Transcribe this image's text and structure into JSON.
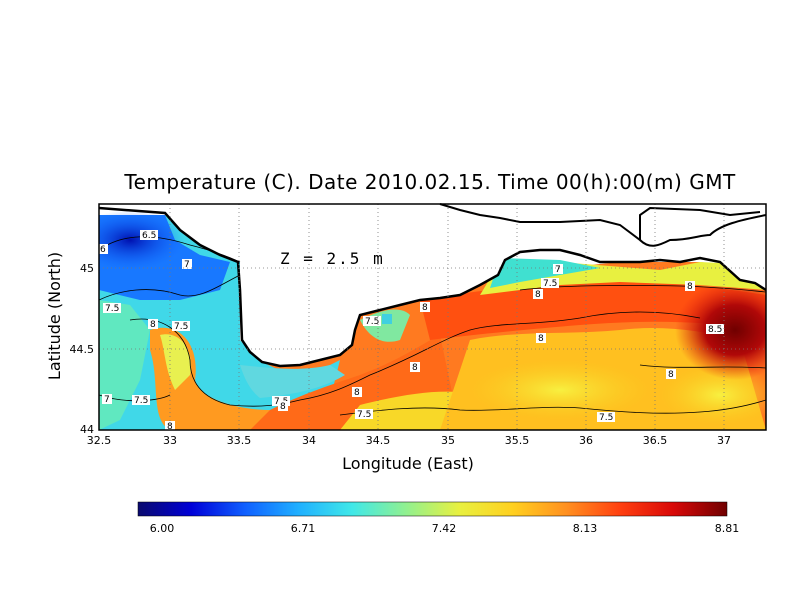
{
  "title": "Temperature (C). Date 2010.02.15. Time 00(h):00(m) GMT",
  "depth_label": "Z = 2.5 m",
  "axes": {
    "xlabel": "Longitude (East)",
    "ylabel": "Latitude (North)",
    "x_ticks": [
      "32.5",
      "33",
      "33.5",
      "34",
      "34.5",
      "35",
      "35.5",
      "36",
      "36.5",
      "37"
    ],
    "y_ticks": [
      "44",
      "44.5",
      "45"
    ],
    "xlim": [
      32.5,
      37.3
    ],
    "ylim": [
      44,
      45.4
    ]
  },
  "colorbar": {
    "ticks": [
      "6.00",
      "6.71",
      "7.42",
      "8.13",
      "8.81"
    ],
    "min": 6.0,
    "max": 8.81,
    "colors": [
      "#0a0a6e",
      "#0000d8",
      "#1060ff",
      "#20b0ff",
      "#40e8e8",
      "#90f090",
      "#e8f040",
      "#ffd020",
      "#ff9020",
      "#ff4010",
      "#d80808",
      "#700000"
    ]
  },
  "contour_labels": [
    "6",
    "6.5",
    "7",
    "7.5",
    "8",
    "7.5",
    "7",
    "7.5",
    "8",
    "7.5",
    "7.5",
    "8",
    "7.5",
    "8",
    "8",
    "8",
    "7.5",
    "7",
    "8",
    "8",
    "8.5",
    "8",
    "7.5"
  ]
}
